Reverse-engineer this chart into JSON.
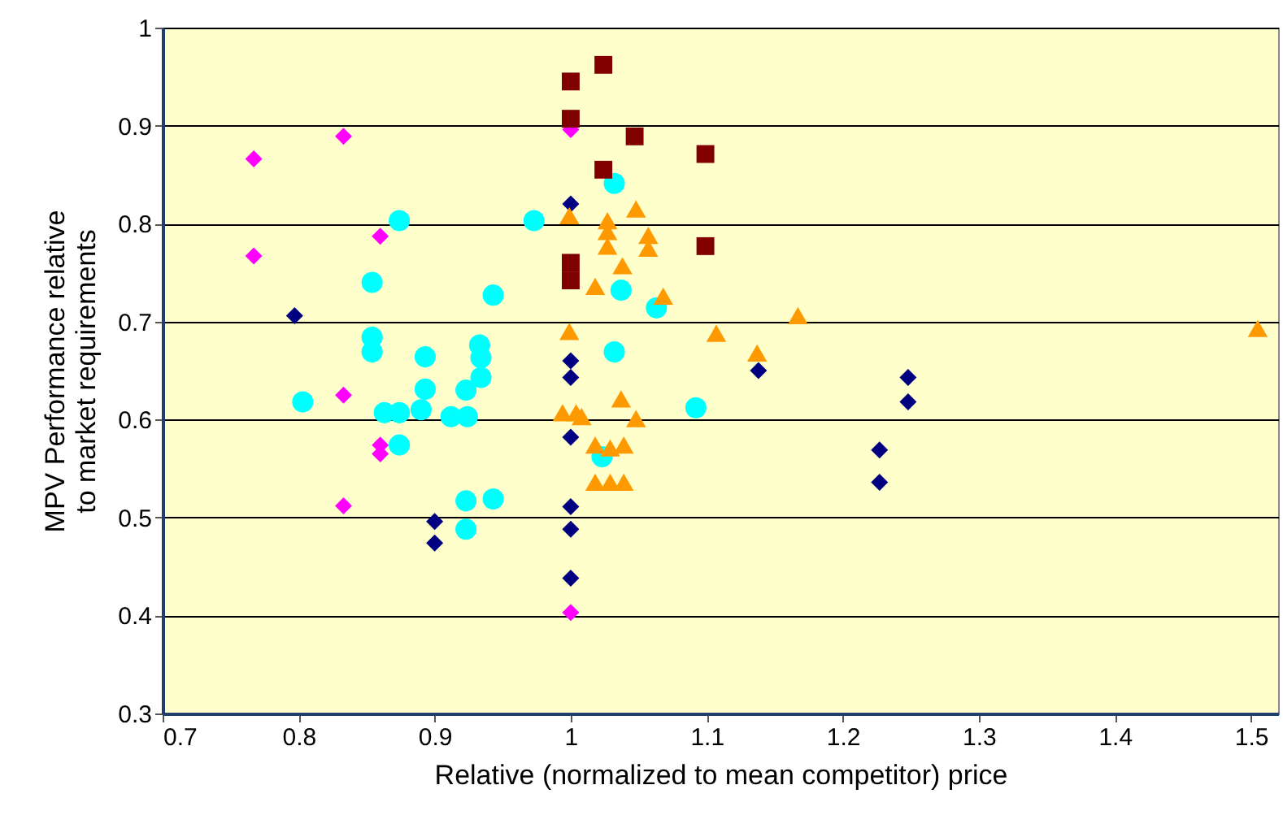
{
  "chart_data": {
    "type": "scatter",
    "xlabel": "Relative (normalized to mean competitor) price",
    "ylabel": "MPV Performance relative\nto market requirements",
    "xlim": [
      0.7,
      1.52
    ],
    "xticks": [
      0.7,
      0.8,
      0.9,
      1,
      1.1,
      1.2,
      1.3,
      1.4,
      1.5
    ],
    "ylim": [
      0.3,
      1
    ],
    "yticks": [
      0.3,
      0.4,
      0.5,
      0.6,
      0.7,
      0.8,
      0.9,
      1
    ],
    "grid": "y",
    "series": [
      {
        "color": "#000080",
        "marker": "diamond",
        "x": [
          0.797,
          0.9,
          0.9,
          1.0,
          1.0,
          1.0,
          1.0,
          1.0,
          1.0,
          1.0,
          1.248,
          1.248,
          1.227,
          1.227,
          1.138
        ],
        "values": [
          0.706,
          0.496,
          0.474,
          0.82,
          0.66,
          0.643,
          0.582,
          0.511,
          0.488,
          0.438,
          0.643,
          0.618,
          0.569,
          0.536,
          0.65
        ]
      },
      {
        "color": "#ff00ff",
        "marker": "diamond",
        "x": [
          0.767,
          0.767,
          0.833,
          0.86,
          0.833,
          0.86,
          0.86,
          0.833,
          1.0,
          1.0
        ],
        "values": [
          0.866,
          0.767,
          0.889,
          0.787,
          0.625,
          0.574,
          0.565,
          0.512,
          0.403,
          0.896
        ]
      },
      {
        "color": "#00ffff",
        "marker": "circle",
        "x": [
          0.874,
          0.973,
          0.854,
          0.943,
          0.854,
          0.854,
          0.893,
          0.933,
          0.934,
          0.934,
          0.893,
          0.923,
          0.803,
          0.863,
          0.874,
          0.89,
          0.912,
          0.924,
          0.874,
          0.923,
          0.943,
          0.923,
          1.032,
          1.037,
          1.063,
          1.032,
          1.023,
          1.092
        ],
        "values": [
          0.803,
          0.803,
          0.74,
          0.727,
          0.684,
          0.669,
          0.664,
          0.676,
          0.663,
          0.643,
          0.631,
          0.63,
          0.618,
          0.607,
          0.607,
          0.61,
          0.603,
          0.603,
          0.574,
          0.517,
          0.519,
          0.488,
          0.841,
          0.732,
          0.714,
          0.669,
          0.562,
          0.612
        ]
      },
      {
        "color": "#ff9900",
        "marker": "triangle",
        "x": [
          0.999,
          1.027,
          1.048,
          1.027,
          1.027,
          1.057,
          1.057,
          1.038,
          1.018,
          1.068,
          0.999,
          1.107,
          1.137,
          1.167,
          1.505,
          0.994,
          1.004,
          1.008,
          1.037,
          1.048,
          1.018,
          1.029,
          1.039,
          1.018,
          1.029,
          1.039
        ],
        "values": [
          0.808,
          0.803,
          0.815,
          0.792,
          0.777,
          0.788,
          0.775,
          0.757,
          0.736,
          0.726,
          0.69,
          0.688,
          0.668,
          0.706,
          0.693,
          0.607,
          0.607,
          0.603,
          0.621,
          0.601,
          0.574,
          0.571,
          0.574,
          0.536,
          0.536,
          0.536
        ]
      },
      {
        "color": "#800000",
        "marker": "square",
        "x": [
          1.0,
          1.024,
          1.0,
          1.047,
          1.099,
          1.024,
          1.099,
          1.0,
          1.0
        ],
        "values": [
          0.945,
          0.962,
          0.907,
          0.889,
          0.871,
          0.855,
          0.777,
          0.76,
          0.742
        ]
      }
    ]
  }
}
